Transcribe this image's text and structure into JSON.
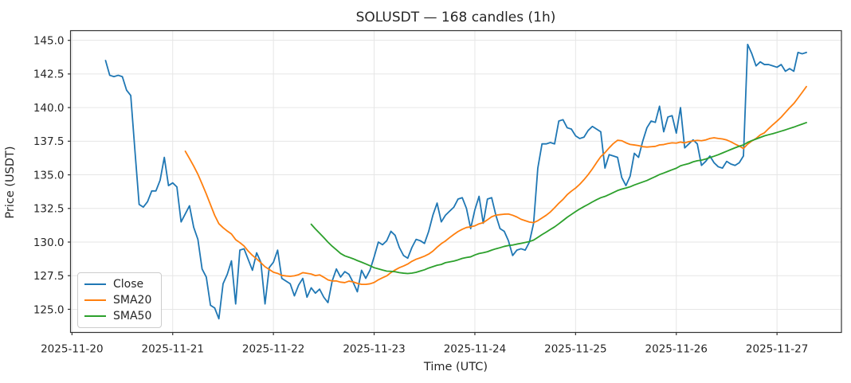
{
  "figure": {
    "title": "SOLUSDT — 168 candles (1h)",
    "xlabel": "Time (UTC)",
    "ylabel": "Price (USDT)",
    "background": "#ffffff",
    "grid_color": "#e6e6e6",
    "spine_color": "#333333",
    "text_color": "#262626"
  },
  "legend": {
    "position": "lower left",
    "items": [
      {
        "label": "Close",
        "color": "#1f77b4"
      },
      {
        "label": "SMA20",
        "color": "#ff7f0e"
      },
      {
        "label": "SMA50",
        "color": "#2ca02c"
      }
    ]
  },
  "chart_data": {
    "type": "line",
    "title": "SOLUSDT — 168 candles (1h)",
    "xlabel": "Time (UTC)",
    "ylabel": "Price (USDT)",
    "grid": true,
    "legend_position": "lower left",
    "n_points": 168,
    "x_start": "2025-11-20 08:00",
    "x_interval_hours": 1,
    "x_tick_labels": [
      "2025-11-20",
      "2025-11-21",
      "2025-11-22",
      "2025-11-23",
      "2025-11-24",
      "2025-11-25",
      "2025-11-26",
      "2025-11-27"
    ],
    "x_tick_positions_hours": [
      -8,
      16,
      40,
      64,
      88,
      112,
      136,
      160
    ],
    "xlim_hours": [
      -8.35,
      175.35
    ],
    "y_ticks": [
      125.0,
      127.5,
      130.0,
      132.5,
      135.0,
      137.5,
      140.0,
      142.5,
      145.0
    ],
    "ylim": [
      123.28,
      145.72
    ],
    "series": [
      {
        "name": "Close",
        "color": "#1f77b4",
        "kind": "raw",
        "values": [
          143.5,
          142.4,
          142.3,
          142.4,
          142.3,
          141.3,
          140.9,
          136.8,
          132.8,
          132.6,
          133.0,
          133.8,
          133.8,
          134.6,
          136.3,
          134.2,
          134.4,
          134.1,
          131.5,
          132.1,
          132.7,
          131.1,
          130.2,
          128.0,
          127.4,
          125.3,
          125.1,
          124.3,
          126.9,
          127.6,
          128.6,
          125.4,
          129.4,
          129.5,
          128.7,
          127.9,
          129.2,
          128.5,
          125.4,
          128.1,
          128.5,
          129.4,
          127.3,
          127.1,
          126.9,
          126.0,
          126.8,
          127.3,
          125.9,
          126.6,
          126.2,
          126.5,
          125.9,
          125.5,
          127.1,
          128.0,
          127.4,
          127.8,
          127.6,
          127.0,
          126.3,
          127.9,
          127.3,
          127.9,
          128.9,
          130.0,
          129.8,
          130.1,
          130.8,
          130.5,
          129.6,
          129.0,
          128.8,
          129.6,
          130.2,
          130.1,
          129.9,
          130.8,
          132.0,
          132.9,
          131.5,
          132.0,
          132.3,
          132.6,
          133.2,
          133.3,
          132.5,
          131.0,
          132.4,
          133.4,
          131.4,
          133.2,
          133.3,
          132.0,
          131.0,
          130.8,
          130.1,
          129.0,
          129.4,
          129.5,
          129.4,
          130.0,
          131.4,
          135.5,
          137.3,
          137.3,
          137.4,
          137.3,
          139.0,
          139.1,
          138.5,
          138.4,
          137.9,
          137.7,
          137.8,
          138.3,
          138.6,
          138.4,
          138.2,
          135.5,
          136.5,
          136.4,
          136.3,
          134.8,
          134.2,
          134.9,
          136.6,
          136.3,
          137.5,
          138.5,
          139.0,
          138.9,
          140.1,
          138.2,
          139.3,
          139.4,
          138.1,
          140.0,
          137.0,
          137.3,
          137.6,
          137.3,
          135.7,
          136.0,
          136.4,
          135.9,
          135.6,
          135.5,
          136.0,
          135.8,
          135.7,
          135.9,
          136.4,
          144.7,
          144.0,
          143.1,
          143.4,
          143.2,
          143.2,
          143.1,
          143.0,
          143.2,
          142.7,
          142.9,
          142.7,
          144.1,
          144.0,
          144.1
        ]
      },
      {
        "name": "SMA20",
        "color": "#ff7f0e",
        "kind": "sma",
        "window": 20,
        "source": "Close"
      },
      {
        "name": "SMA50",
        "color": "#2ca02c",
        "kind": "sma",
        "window": 50,
        "source": "Close"
      }
    ]
  }
}
